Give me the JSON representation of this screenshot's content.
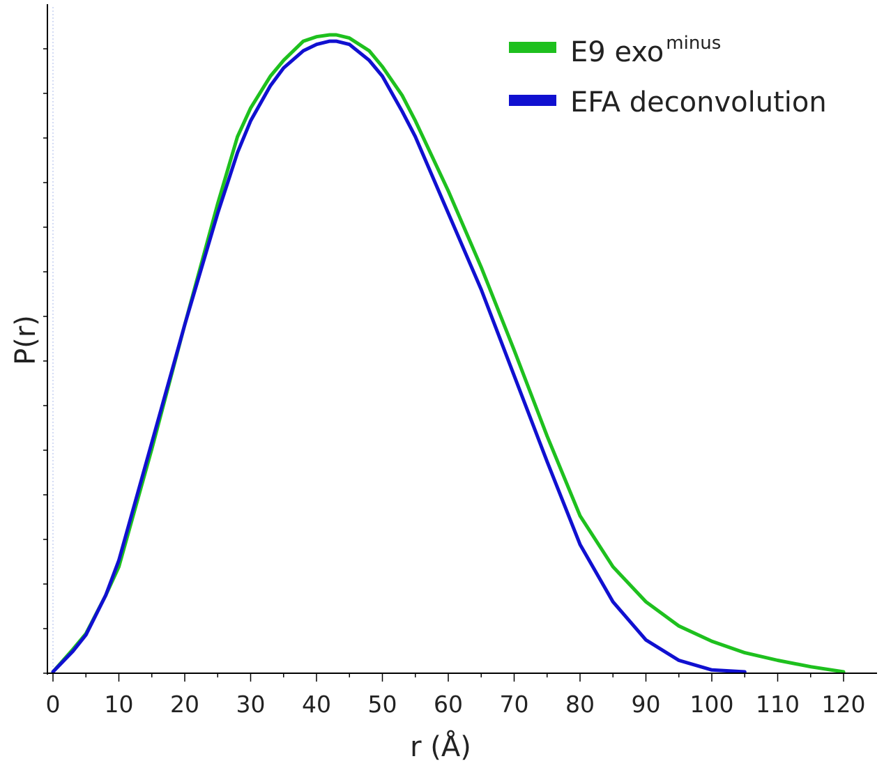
{
  "chart_data": {
    "type": "line",
    "title": "",
    "xlabel": "r (Å)",
    "ylabel": "P(r)",
    "xlim": [
      0,
      125
    ],
    "ylim": [
      0,
      1.0
    ],
    "x_ticks": [
      0,
      10,
      20,
      30,
      40,
      50,
      60,
      70,
      80,
      90,
      100,
      110,
      120
    ],
    "y_tick_labels_shown": false,
    "grid": false,
    "legend_position": "top-right",
    "series": [
      {
        "name": "E9 exo",
        "name_superscript": "minus",
        "color": "#1ec01e",
        "x": [
          0,
          3,
          5,
          8,
          10,
          15,
          20,
          25,
          28,
          30,
          33,
          35,
          38,
          40,
          42,
          43,
          45,
          48,
          50,
          53,
          55,
          60,
          65,
          70,
          75,
          80,
          85,
          90,
          95,
          100,
          105,
          110,
          115,
          120
        ],
        "y": [
          0.0,
          0.035,
          0.06,
          0.12,
          0.165,
          0.35,
          0.545,
          0.735,
          0.84,
          0.885,
          0.935,
          0.96,
          0.99,
          0.997,
          1.0,
          1.0,
          0.995,
          0.975,
          0.95,
          0.905,
          0.865,
          0.755,
          0.635,
          0.505,
          0.37,
          0.245,
          0.165,
          0.11,
          0.072,
          0.048,
          0.03,
          0.018,
          0.008,
          0.0
        ]
      },
      {
        "name": "EFA deconvolution",
        "color": "#1010d0",
        "x": [
          0,
          3,
          5,
          8,
          10,
          15,
          20,
          25,
          28,
          30,
          33,
          35,
          38,
          40,
          42,
          43,
          45,
          48,
          50,
          53,
          55,
          60,
          65,
          70,
          75,
          80,
          85,
          90,
          95,
          100,
          105
        ],
        "y": [
          0.0,
          0.032,
          0.058,
          0.12,
          0.175,
          0.36,
          0.545,
          0.72,
          0.815,
          0.865,
          0.92,
          0.948,
          0.975,
          0.985,
          0.99,
          0.99,
          0.985,
          0.96,
          0.935,
          0.88,
          0.84,
          0.72,
          0.6,
          0.465,
          0.33,
          0.2,
          0.11,
          0.05,
          0.018,
          0.003,
          0.0
        ]
      }
    ]
  }
}
